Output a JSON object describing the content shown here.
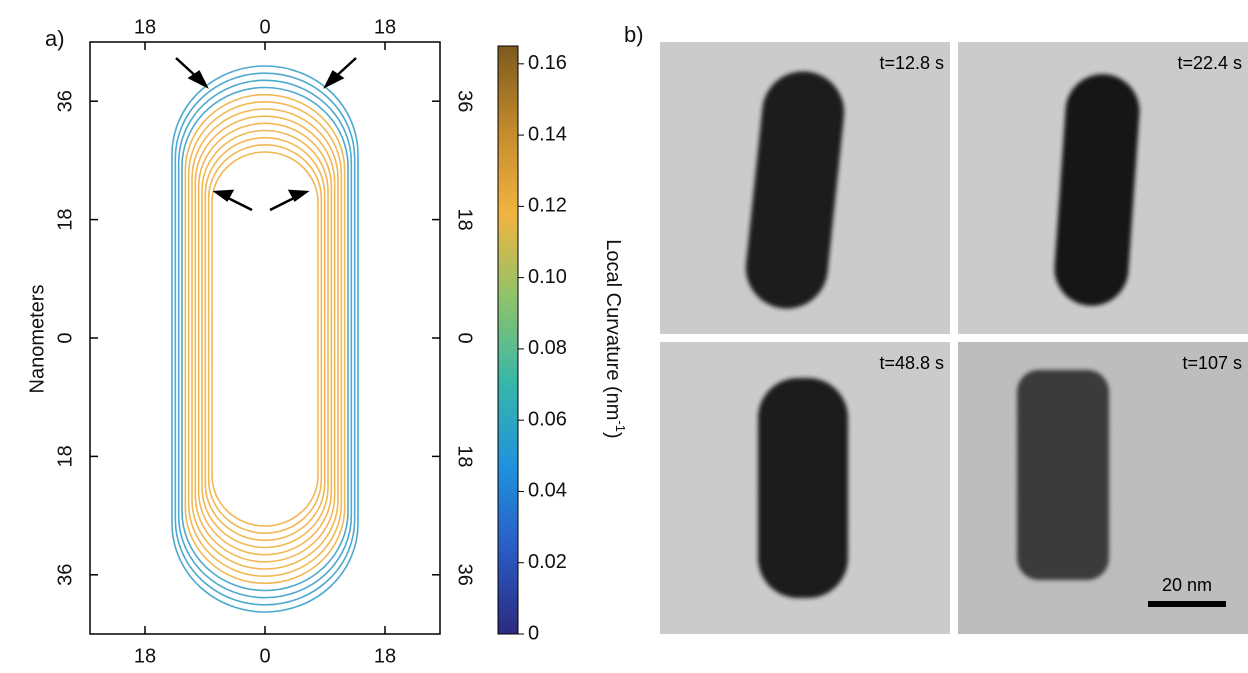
{
  "panel_a_label": "a)",
  "panel_b_label": "b)",
  "chart_data": {
    "type": "contour",
    "ylabel": "Nanometers",
    "xlim": [
      -26.25,
      26.25
    ],
    "xticks": [
      {
        "value": -18,
        "label": "18"
      },
      0,
      18
    ],
    "ylim": [
      -45,
      45
    ],
    "yticks": [
      {
        "value": -36,
        "label": "36"
      },
      {
        "value": -18,
        "label": "18"
      },
      0,
      18,
      36
    ],
    "colorbar": {
      "label": "Local Curvature (nm",
      "label_sup": "-1",
      "label_end": ")",
      "lim": [
        0,
        0.165
      ],
      "ticks": [
        0,
        0.02,
        0.04,
        0.06,
        0.08,
        0.1,
        0.12,
        0.14,
        0.16
      ],
      "tick_labels": [
        "0",
        "0.02",
        "0.04",
        "0.06",
        "0.08",
        "0.10",
        "0.12",
        "0.14",
        "0.16"
      ],
      "colors": [
        "#2b2a7e",
        "#2a5bc4",
        "#1f93dd",
        "#37b7a8",
        "#8fc36a",
        "#f2b440",
        "#c28a2c",
        "#7d5a1e"
      ]
    }
  },
  "micrographs": [
    {
      "time": "t=12.8 s"
    },
    {
      "time": "t=22.4 s"
    },
    {
      "time": "t=48.8 s"
    },
    {
      "time": "t=107 s"
    }
  ],
  "scale_bar": "20 nm"
}
